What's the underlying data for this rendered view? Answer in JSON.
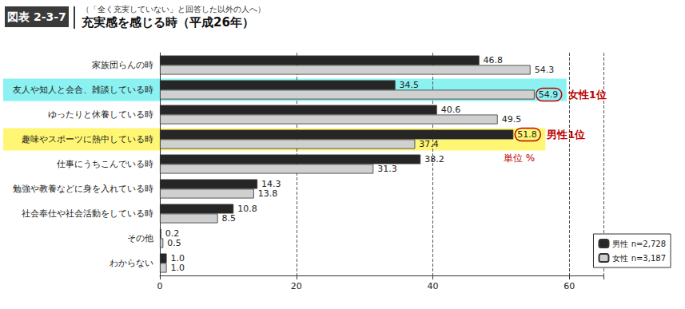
{
  "chart_data": {
    "type": "bar",
    "orientation": "horizontal",
    "header": "図表 2-3-7",
    "subtitle": "（「全く充実していない」と回答した以外の人へ）",
    "title": "充実感を感じる時（平成26年）",
    "categories": [
      "家族団らんの時",
      "友人や知人と会合、雑談している時",
      "ゆったりと休養している時",
      "趣味やスポーツに熱中している時",
      "仕事にうちこんでいる時",
      "勉強や教養などに身を入れている時",
      "社会奉仕や社会活動をしている時",
      "その他",
      "わからない"
    ],
    "series": [
      {
        "name": "男性 n=2,728",
        "color": "#262626",
        "values": [
          46.8,
          34.5,
          40.6,
          51.8,
          38.2,
          14.3,
          10.8,
          0.2,
          1.0
        ],
        "value_labels": [
          "46.8",
          "34.5",
          "40.6",
          "51.8",
          "38.2",
          "14.3",
          "10.8",
          "0.2",
          "1.0"
        ]
      },
      {
        "name": "女性 n=3,187",
        "color": "#d0d0d0",
        "values": [
          54.3,
          54.9,
          49.5,
          37.4,
          31.3,
          13.8,
          8.5,
          0.5,
          1.0
        ],
        "value_labels": [
          "54.3",
          "54.9",
          "49.5",
          "37.4",
          "31.3",
          "13.8",
          "8.5",
          "0.5",
          "1.0"
        ]
      }
    ],
    "xlim": [
      0,
      65
    ],
    "xticks": [
      0,
      20,
      40,
      60
    ],
    "grid": true,
    "legend": "lower right",
    "data_labels": true,
    "annotations": [
      {
        "text": "女性1位",
        "category": "友人や知人と会合、雑談している時",
        "series": "女性 n=3,187"
      },
      {
        "text": "男性1位",
        "category": "趣味やスポーツに熱中している時",
        "series": "男性 n=2,728"
      },
      {
        "text": "単位 %"
      }
    ]
  }
}
